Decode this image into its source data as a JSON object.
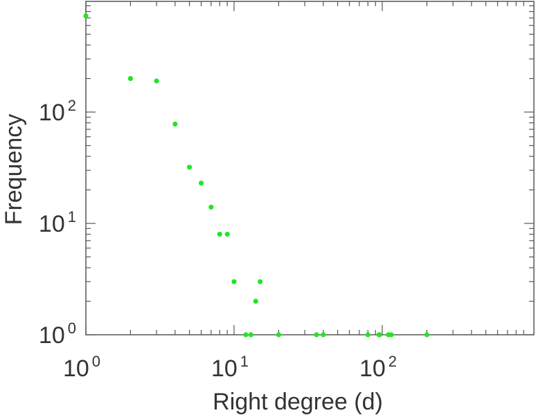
{
  "chart_data": {
    "type": "scatter",
    "title": "",
    "xlabel": "Right degree (d)",
    "ylabel": "Frequency",
    "xscale": "log",
    "yscale": "log",
    "xlim": [
      1,
      1000
    ],
    "ylim": [
      1,
      900
    ],
    "x_ticks": [
      {
        "base": "10",
        "exp": "0",
        "value": 1
      },
      {
        "base": "10",
        "exp": "1",
        "value": 10
      },
      {
        "base": "10",
        "exp": "2",
        "value": 100
      }
    ],
    "y_ticks": [
      {
        "base": "10",
        "exp": "0",
        "value": 1
      },
      {
        "base": "10",
        "exp": "1",
        "value": 10
      },
      {
        "base": "10",
        "exp": "2",
        "value": 100
      }
    ],
    "grid": false,
    "legend": "none",
    "marker_color": "#22e622",
    "series": [
      {
        "x": [
          1,
          2,
          3,
          4,
          5,
          6,
          7,
          8,
          9,
          10,
          12,
          13,
          14,
          15,
          20,
          36,
          40,
          80,
          95,
          96,
          110,
          115,
          200
        ],
        "y": [
          730,
          200,
          190,
          78,
          32,
          23,
          14,
          8,
          8,
          3,
          1,
          1,
          2,
          3,
          1,
          1,
          1,
          1,
          1,
          1,
          1,
          1,
          1
        ]
      }
    ]
  }
}
